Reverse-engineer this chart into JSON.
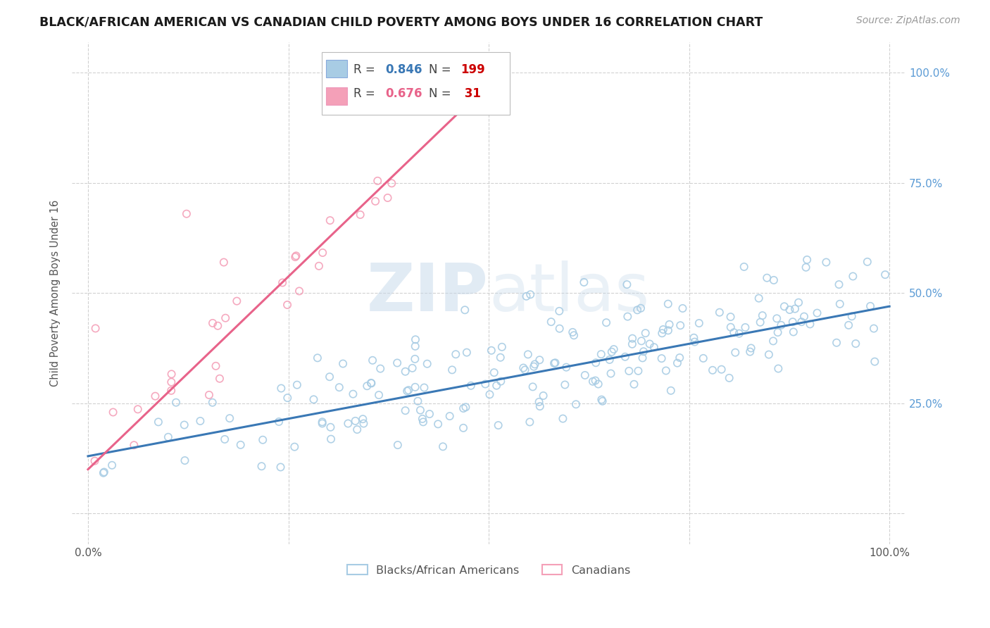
{
  "title": "BLACK/AFRICAN AMERICAN VS CANADIAN CHILD POVERTY AMONG BOYS UNDER 16 CORRELATION CHART",
  "source": "Source: ZipAtlas.com",
  "ylabel": "Child Poverty Among Boys Under 16",
  "watermark_zip": "ZIP",
  "watermark_atlas": "atlas",
  "blue_R": 0.846,
  "blue_N": 199,
  "pink_R": 0.676,
  "pink_N": 31,
  "blue_color": "#a8cce4",
  "pink_color": "#f4a0b8",
  "blue_line_color": "#3a78b5",
  "pink_line_color": "#e8638a",
  "tick_label_color": "#5b9bd5",
  "legend_blue_label": "Blacks/African Americans",
  "legend_pink_label": "Canadians",
  "background_color": "#ffffff",
  "grid_color": "#cccccc",
  "title_fontsize": 12.5,
  "axis_label_fontsize": 10,
  "blue_slope": 0.34,
  "blue_intercept": 0.13,
  "pink_slope": 1.75,
  "pink_intercept": 0.1
}
